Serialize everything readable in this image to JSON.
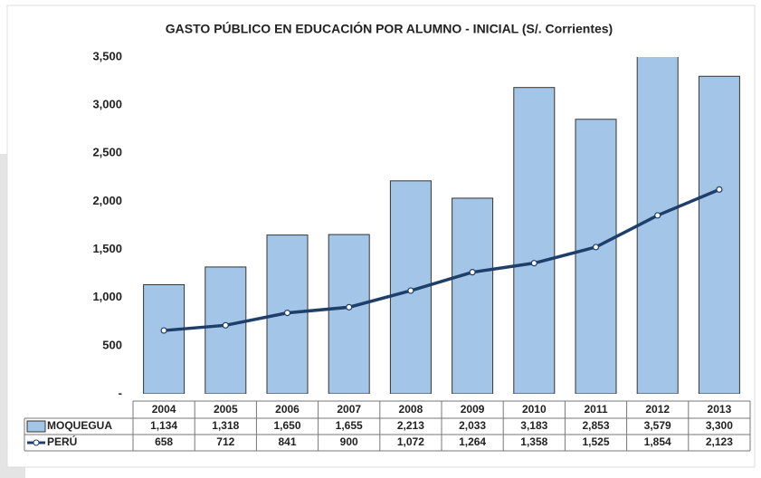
{
  "chart_data": {
    "type": "bar",
    "title": "GASTO PÚBLICO EN EDUCACIÓN POR ALUMNO - INICIAL (S/. Corrientes)",
    "categories": [
      "2004",
      "2005",
      "2006",
      "2007",
      "2008",
      "2009",
      "2010",
      "2011",
      "2012",
      "2013"
    ],
    "series": [
      {
        "name": "MOQUEGUA",
        "type": "bar",
        "color": "#a3c6e8",
        "values": [
          1134,
          1318,
          1650,
          1655,
          2213,
          2033,
          3183,
          2853,
          3579,
          3300
        ],
        "value_labels": [
          "1,134",
          "1,318",
          "1,650",
          "1,655",
          "2,213",
          "2,033",
          "3,183",
          "2,853",
          "3,579",
          "3,300"
        ]
      },
      {
        "name": "PERÚ",
        "type": "line",
        "color": "#1f3f6b",
        "values": [
          658,
          712,
          841,
          900,
          1072,
          1264,
          1358,
          1525,
          1854,
          2123
        ],
        "value_labels": [
          "658",
          "712",
          "841",
          "900",
          "1,072",
          "1,264",
          "1,358",
          "1,525",
          "1,854",
          "2,123"
        ]
      }
    ],
    "ylim": [
      0,
      3500
    ],
    "yticks": [
      {
        "value": 0,
        "label": "-"
      },
      500,
      {
        "value": 1000,
        "label": "1,000"
      },
      {
        "value": 1500,
        "label": "1,500"
      },
      {
        "value": 2000,
        "label": "2,000"
      },
      {
        "value": 2500,
        "label": "2,500"
      },
      {
        "value": 3000,
        "label": "3,000"
      },
      {
        "value": 3500,
        "label": "3,500"
      }
    ],
    "grid": false
  }
}
